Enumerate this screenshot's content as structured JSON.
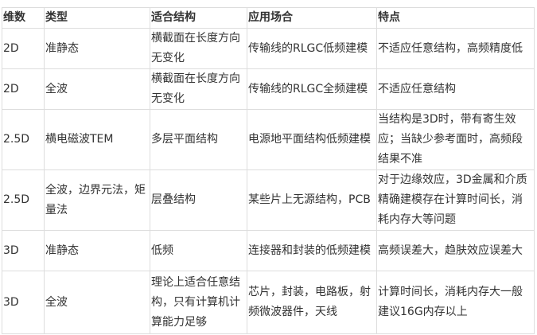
{
  "table": {
    "headers": [
      "维数",
      "类型",
      "适合结构",
      "应用场合",
      "特点"
    ],
    "rows": [
      [
        "2D",
        "准静态",
        "横截面在长度方向无变化",
        "传输线的RLGC低频建模",
        "不适应任意结构，高频精度低"
      ],
      [
        "2D",
        "全波",
        "横截面在长度方向无变化",
        "传输线的RLGC全频建模",
        "不适应任意结构"
      ],
      [
        "2.5D",
        "横电磁波TEM",
        "多层平面结构",
        "电源地平面结构低频建模",
        "当结构是3D时，带有寄生效应；当缺少参考面时，高频段结果不准"
      ],
      [
        "2.5D",
        "全波，边界元法，矩量法",
        "层叠结构",
        "某些片上无源结构，PCB",
        "对于边缘效应，3D金属和介质精确建模存在计算时间长，消耗内存大等问题"
      ],
      [
        "3D",
        "准静态",
        "低频",
        "连接器和封装的低频建模",
        "高频误差大，趋肤效应误差大"
      ],
      [
        "3D",
        "全波",
        "理论上适合任意结构，只有计算机计算能力足够",
        "芯片，封装，电路板，射频微波器件，天线",
        "计算时间长，消耗内存大一般建议16G内存以上"
      ]
    ]
  }
}
